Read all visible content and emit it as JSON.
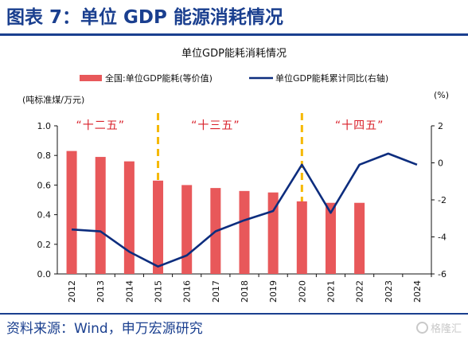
{
  "figure": {
    "label": "图表 7：单位 GDP 能源消耗情况",
    "source": "资料来源：Wind，申万宏源研究",
    "watermark": "格隆汇"
  },
  "chart_data": {
    "type": "bar+line",
    "title": "单位GDP能耗消耗情况",
    "categories": [
      "2012",
      "2013",
      "2014",
      "2015",
      "2016",
      "2017",
      "2018",
      "2019",
      "2020",
      "2021",
      "2022",
      "2023",
      "2024"
    ],
    "series": [
      {
        "name": "全国:单位GDP能耗(等价值)",
        "type": "bar",
        "axis": "left",
        "color": "#e8585a",
        "values": [
          0.83,
          0.79,
          0.76,
          0.63,
          0.6,
          0.58,
          0.56,
          0.55,
          0.49,
          0.48,
          0.48,
          null,
          null
        ]
      },
      {
        "name": "单位GDP能耗累计同比(右轴)",
        "type": "line",
        "axis": "right",
        "color": "#0d2d7e",
        "values": [
          -3.6,
          -3.7,
          -4.8,
          -5.6,
          -5.0,
          -3.7,
          -3.1,
          -2.6,
          -0.1,
          -2.7,
          -0.1,
          0.5,
          -0.1
        ]
      }
    ],
    "left_axis": {
      "label": "(吨标准煤/万元)",
      "ylim": [
        0,
        1.0
      ],
      "ticks": [
        "0.0",
        "0.2",
        "0.4",
        "0.6",
        "0.8",
        "1.0"
      ]
    },
    "right_axis": {
      "label": "(%)",
      "ylim": [
        -6,
        2
      ],
      "ticks": [
        "-6",
        "-4",
        "-2",
        "0",
        "2"
      ]
    },
    "periods": [
      {
        "label": "“十二五”",
        "category": "2013"
      },
      {
        "label": "“十三五”",
        "category": "2017"
      },
      {
        "label": "“十四五”",
        "category": "2022"
      }
    ],
    "period_dividers": [
      "2015",
      "2020"
    ],
    "grid": false,
    "legend_position": "top"
  }
}
